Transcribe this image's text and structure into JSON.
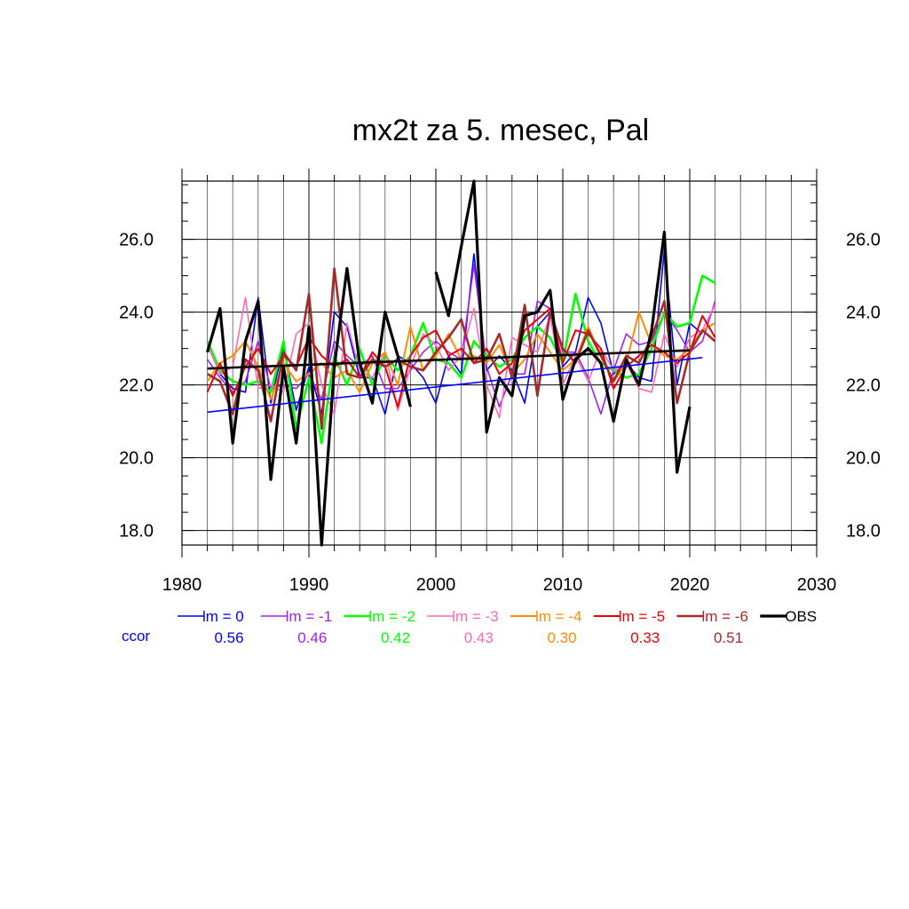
{
  "chart_data": {
    "type": "line",
    "title": "mx2t za 5. mesec, Pal",
    "xlabel": "",
    "ylabel": "",
    "xlim": [
      1980,
      2030
    ],
    "ylim": [
      17.6,
      27.6
    ],
    "x_ticks": [
      1980,
      1990,
      2000,
      2010,
      2020,
      2030
    ],
    "x_tick_labels": [
      "1980",
      "1990",
      "2000",
      "2010",
      "2020",
      "2030"
    ],
    "y_ticks": [
      18,
      20,
      22,
      24,
      26
    ],
    "y_tick_labels": [
      "18.0",
      "20.0",
      "22.0",
      "24.0",
      "26.0"
    ],
    "grid": true,
    "legend_position": "bottom",
    "ccor_label": "ccor",
    "series": [
      {
        "name": "lm = 0",
        "ccor": "0.56",
        "color": "#0000ff",
        "width": 1.6,
        "x_start": 1982,
        "values": [
          23.2,
          22.3,
          21.9,
          21.8,
          24.4,
          21.5,
          23.1,
          21.3,
          22.5,
          21.2,
          24.0,
          23.6,
          22.2,
          22.2,
          21.2,
          22.8,
          22.6,
          22.2,
          21.5,
          22.8,
          22.3,
          25.6,
          22.4,
          22.8,
          22.4,
          21.5,
          23.6,
          24.0,
          22.5,
          22.9,
          24.4,
          23.7,
          22.3,
          22.6,
          22.2,
          22.1,
          25.7,
          22.0,
          23.7,
          23.4
        ]
      },
      {
        "name": "lm = -1",
        "ccor": "0.46",
        "color": "#a020f0",
        "width": 1.6,
        "x_start": 1982,
        "values": [
          22.7,
          22.2,
          21.8,
          22.1,
          23.2,
          21.9,
          22.0,
          21.9,
          22.3,
          21.6,
          23.2,
          22.8,
          22.5,
          22.8,
          21.9,
          21.9,
          22.4,
          22.9,
          23.2,
          22.9,
          22.7,
          25.3,
          22.5,
          21.4,
          22.3,
          22.3,
          24.3,
          24.1,
          22.9,
          22.9,
          22.2,
          21.2,
          22.4,
          23.4,
          23.1,
          23.2,
          24.0,
          23.5,
          22.9,
          23.2,
          24.3
        ]
      },
      {
        "name": "lm = -2",
        "ccor": "0.42",
        "color": "#00ff00",
        "width": 2.6,
        "x_start": 1982,
        "values": [
          23.2,
          22.4,
          22.1,
          22.0,
          22.1,
          21.8,
          23.2,
          20.8,
          22.2,
          20.4,
          22.8,
          22.0,
          23.0,
          22.0,
          22.8,
          22.4,
          22.8,
          23.7,
          22.7,
          22.6,
          22.2,
          23.2,
          22.8,
          22.5,
          22.7,
          23.3,
          23.6,
          23.3,
          22.6,
          24.5,
          23.2,
          22.6,
          22.4,
          22.2,
          22.3,
          23.0,
          24.0,
          23.6,
          23.7,
          25.0,
          24.8
        ]
      },
      {
        "name": "lm = -3",
        "ccor": "0.43",
        "color": "#ff69b4",
        "width": 1.6,
        "x_start": 1982,
        "values": [
          23.1,
          22.3,
          22.5,
          24.4,
          21.9,
          22.0,
          21.8,
          23.4,
          23.7,
          22.0,
          21.2,
          23.7,
          22.4,
          22.2,
          22.9,
          21.3,
          22.5,
          23.4,
          23.1,
          22.4,
          22.8,
          24.1,
          22.0,
          21.1,
          23.3,
          23.1,
          22.9,
          23.9,
          22.0,
          22.8,
          22.1,
          23.0,
          22.4,
          22.6,
          21.9,
          21.8,
          23.4,
          22.5,
          23.3,
          23.5,
          24.2
        ]
      },
      {
        "name": "lm = -4",
        "ccor": "0.30",
        "color": "#ff8c00",
        "width": 2.0,
        "x_start": 1982,
        "values": [
          22.1,
          22.6,
          22.8,
          23.2,
          22.5,
          21.6,
          22.6,
          22.1,
          22.3,
          22.6,
          22.2,
          22.4,
          21.8,
          22.6,
          22.9,
          22.0,
          23.6,
          22.4,
          22.8,
          23.4,
          22.7,
          22.8,
          22.6,
          23.1,
          22.3,
          22.7,
          23.4,
          22.9,
          22.4,
          22.7,
          23.6,
          22.8,
          22.1,
          22.6,
          24.0,
          23.1,
          22.8,
          22.7,
          23.0,
          23.5,
          23.7
        ]
      },
      {
        "name": "lm = -5",
        "ccor": "0.33",
        "color": "#ee0000",
        "width": 2.0,
        "x_start": 1982,
        "values": [
          21.8,
          22.6,
          21.7,
          22.5,
          23.0,
          22.3,
          22.8,
          22.5,
          23.3,
          22.8,
          22.5,
          22.7,
          22.2,
          22.9,
          22.5,
          21.4,
          22.8,
          23.3,
          23.5,
          22.8,
          23.0,
          22.6,
          23.0,
          22.3,
          22.6,
          23.5,
          23.8,
          24.1,
          22.6,
          23.5,
          23.4,
          23.0,
          21.9,
          22.5,
          22.8,
          23.1,
          22.9,
          22.6,
          22.9,
          23.9,
          23.3
        ]
      },
      {
        "name": "lm = -6",
        "ccor": "0.51",
        "color": "#a52a2a",
        "width": 2.6,
        "x_start": 1982,
        "values": [
          22.3,
          22.1,
          21.2,
          22.7,
          22.4,
          21.0,
          22.9,
          22.4,
          24.5,
          20.8,
          25.2,
          22.3,
          22.2,
          22.7,
          22.5,
          22.7,
          22.5,
          22.4,
          22.9,
          23.3,
          23.8,
          22.6,
          22.7,
          23.4,
          22.2,
          24.2,
          21.7,
          24.0,
          23.0,
          22.6,
          23.5,
          22.8,
          22.1,
          22.8,
          22.6,
          23.3,
          24.3,
          21.5,
          22.9,
          23.5,
          23.2
        ]
      },
      {
        "name": "OBS",
        "ccor": "",
        "color": "#000000",
        "width": 3.2,
        "x_start": 1982,
        "values": [
          22.9,
          24.1,
          20.4,
          23.2,
          24.3,
          19.4,
          22.5,
          20.4,
          23.6,
          17.6,
          22.5,
          25.2,
          22.6,
          21.5,
          24.0,
          22.8,
          21.4,
          null,
          25.1,
          23.9,
          25.8,
          27.6,
          20.7,
          22.2,
          21.7,
          23.9,
          24.0,
          24.6,
          21.6,
          22.7,
          23.0,
          22.6,
          21.0,
          22.7,
          22.0,
          23.5,
          26.2,
          19.6,
          21.4
        ]
      }
    ],
    "trends": [
      {
        "series": "lm = 0",
        "x": [
          1982,
          2021
        ],
        "y": [
          21.25,
          22.75
        ],
        "color": "#0000ff",
        "width": 1.6
      },
      {
        "series": "OBS",
        "x": [
          1982,
          2020
        ],
        "y": [
          22.45,
          22.95
        ],
        "color": "#000000",
        "width": 2.6
      }
    ]
  }
}
